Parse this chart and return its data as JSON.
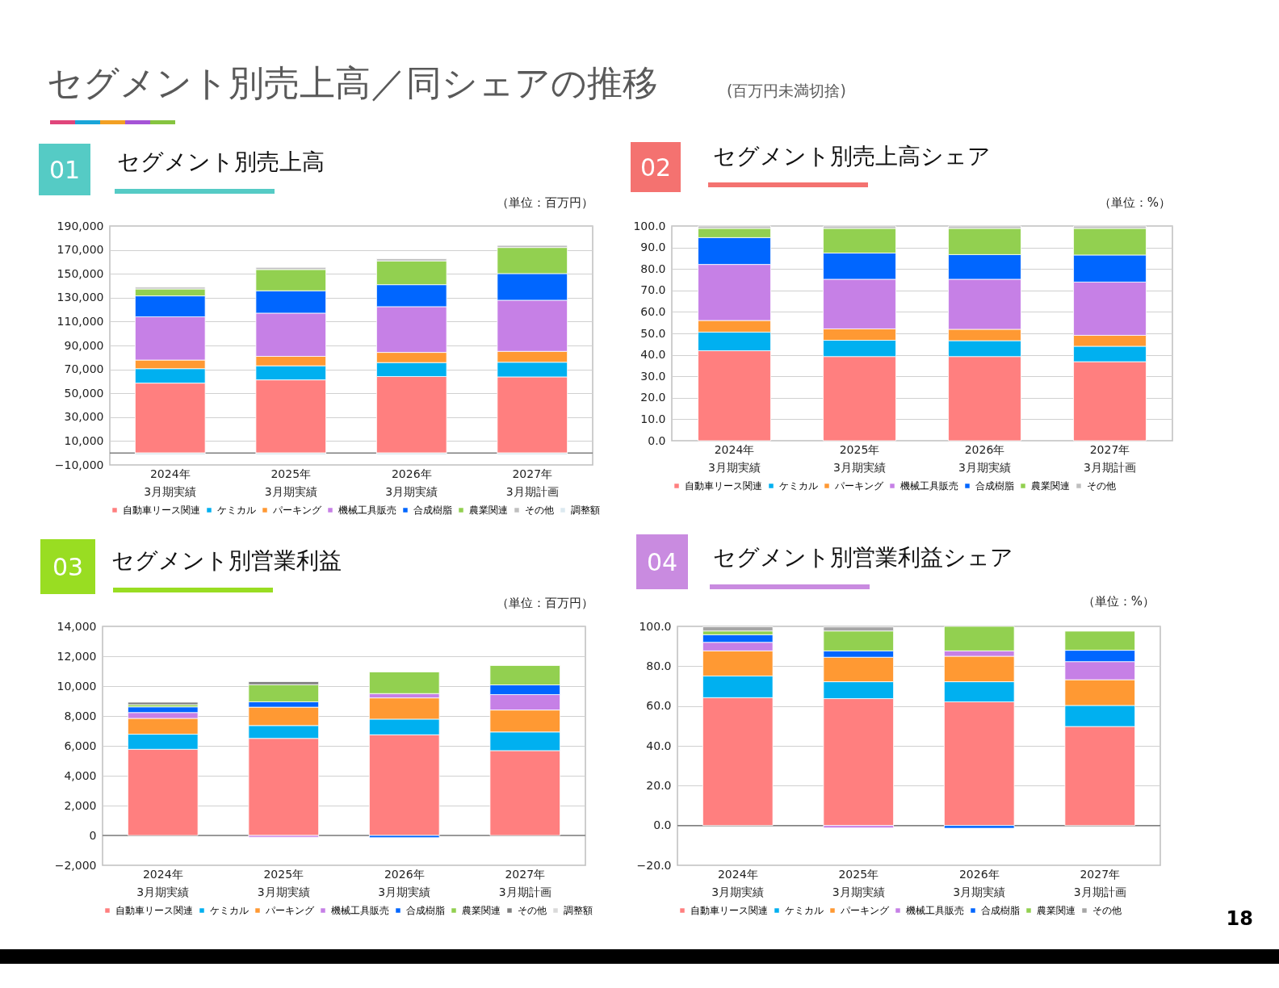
{
  "chart_data": [
    {
      "type": "bar",
      "title": "セグメント別売上高",
      "ylabel": "（単位：百万円）",
      "annotations": [
        "01",
        "セグメント別売上高／同シェアの推移",
        "(百万円未満切捨)"
      ],
      "categories": [
        "2024年\n3月期実績",
        "2025年\n3月期実績",
        "2026年\n3月期実績",
        "2027年\n3月期計画"
      ],
      "stacked": true,
      "series": [
        {
          "name": "自動車リース関連",
          "color": "#ff7f7f",
          "values": [
            58500,
            61200,
            64000,
            63700
          ]
        },
        {
          "name": "ケミカル",
          "color": "#00b0f0",
          "values": [
            12100,
            11800,
            11700,
            12300
          ]
        },
        {
          "name": "パーキング",
          "color": "#ff9933",
          "values": [
            7200,
            7900,
            8500,
            9100
          ]
        },
        {
          "name": "機械工具販売",
          "color": "#c680e6",
          "values": [
            36200,
            36200,
            38300,
            42800
          ]
        },
        {
          "name": "合成樹脂",
          "color": "#0066ff",
          "values": [
            17500,
            18700,
            18400,
            22300
          ]
        },
        {
          "name": "農業関連",
          "color": "#92d050",
          "values": [
            5800,
            17800,
            19900,
            21800
          ]
        },
        {
          "name": "その他",
          "color": "#bfbfbf",
          "values": [
            1500,
            1800,
            1800,
            1800
          ]
        },
        {
          "name": "調整額",
          "color": "#dce9f0",
          "values": [
            -1500,
            -1500,
            -1500,
            -1500
          ]
        }
      ],
      "ylim": [
        -10000,
        190000
      ],
      "yticks": [
        {
          "value": -10000,
          "label": "−10,000"
        },
        {
          "value": 10000,
          "label": "10,000"
        },
        {
          "value": 30000,
          "label": "30,000"
        },
        {
          "value": 50000,
          "label": "50,000"
        },
        {
          "value": 70000,
          "label": "70,000"
        },
        {
          "value": 90000,
          "label": "90,000"
        },
        {
          "value": 110000,
          "label": "110,000"
        },
        {
          "value": 130000,
          "label": "130,000"
        },
        {
          "value": 150000,
          "label": "150,000"
        },
        {
          "value": 170000,
          "label": "170,000"
        },
        {
          "value": 190000,
          "label": "190,000"
        }
      ],
      "ref_lines": [
        {
          "axis": "y",
          "value": 0,
          "color": "#808080"
        }
      ],
      "grid": "y",
      "legend": "bottom"
    },
    {
      "type": "bar",
      "title": "セグメント別売上高シェア",
      "ylabel": "（単位：%）",
      "annotations": [
        "02"
      ],
      "categories": [
        "2024年\n3月期実績",
        "2025年\n3月期実績",
        "2026年\n3月期実績",
        "2027年\n3月期計画"
      ],
      "stacked": true,
      "series": [
        {
          "name": "自動車リース関連",
          "color": "#ff7f7f",
          "values": [
            41.9,
            39.2,
            39.2,
            36.8
          ]
        },
        {
          "name": "ケミカル",
          "color": "#00b0f0",
          "values": [
            8.7,
            7.6,
            7.4,
            7.2
          ]
        },
        {
          "name": "パーキング",
          "color": "#ff9933",
          "values": [
            5.4,
            5.3,
            5.3,
            5.1
          ]
        },
        {
          "name": "機械工具販売",
          "color": "#c680e6",
          "values": [
            26.1,
            23.1,
            23.3,
            24.8
          ]
        },
        {
          "name": "合成樹脂",
          "color": "#0066ff",
          "values": [
            12.5,
            12.2,
            11.5,
            12.6
          ]
        },
        {
          "name": "農業関連",
          "color": "#92d050",
          "values": [
            4.3,
            11.5,
            12.2,
            12.4
          ]
        },
        {
          "name": "その他",
          "color": "#bfbfbf",
          "values": [
            1.1,
            1.1,
            1.1,
            1.1
          ]
        }
      ],
      "ylim": [
        0,
        100
      ],
      "yticks": [
        {
          "value": 0,
          "label": "0.0"
        },
        {
          "value": 10,
          "label": "10.0"
        },
        {
          "value": 20,
          "label": "20.0"
        },
        {
          "value": 30,
          "label": "30.0"
        },
        {
          "value": 40,
          "label": "40.0"
        },
        {
          "value": 50,
          "label": "50.0"
        },
        {
          "value": 60,
          "label": "60.0"
        },
        {
          "value": 70,
          "label": "70.0"
        },
        {
          "value": 80,
          "label": "80.0"
        },
        {
          "value": 90,
          "label": "90.0"
        },
        {
          "value": 100,
          "label": "100.0"
        }
      ],
      "grid": "y",
      "legend": "bottom"
    },
    {
      "type": "bar",
      "title": "セグメント別営業利益",
      "ylabel": "（単位：百万円）",
      "annotations": [
        "03"
      ],
      "categories": [
        "2024年\n3月期実績",
        "2025年\n3月期実績",
        "2026年\n3月期実績",
        "2027年\n3月期計画"
      ],
      "stacked": true,
      "series": [
        {
          "name": "自動車リース関連",
          "color": "#ff7f7f",
          "values": [
            5770,
            6500,
            6740,
            5680
          ]
        },
        {
          "name": "ケミカル",
          "color": "#00b0f0",
          "values": [
            1010,
            860,
            1050,
            1250
          ]
        },
        {
          "name": "パーキング",
          "color": "#ff9933",
          "values": [
            1060,
            1230,
            1420,
            1470
          ]
        },
        {
          "name": "機械工具販売",
          "color": "#c680e6",
          "values": [
            390,
            -120,
            290,
            1030
          ]
        },
        {
          "name": "合成樹脂",
          "color": "#0066ff",
          "values": [
            380,
            360,
            -150,
            650
          ]
        },
        {
          "name": "農業関連",
          "color": "#92d050",
          "values": [
            150,
            1150,
            1450,
            1300
          ]
        },
        {
          "name": "その他",
          "color": "#7f7f7f",
          "values": [
            160,
            200,
            null,
            null
          ]
        },
        {
          "name": "調整額",
          "color": "#d9d9d9",
          "values": [
            null,
            null,
            null,
            null
          ]
        }
      ],
      "ylim": [
        -2000,
        14000
      ],
      "yticks": [
        {
          "value": -2000,
          "label": "−2,000"
        },
        0,
        {
          "value": 2000,
          "label": "2,000"
        },
        {
          "value": 4000,
          "label": "4,000"
        },
        {
          "value": 6000,
          "label": "6,000"
        },
        {
          "value": 8000,
          "label": "8,000"
        },
        {
          "value": 10000,
          "label": "10,000"
        },
        {
          "value": 12000,
          "label": "12,000"
        },
        {
          "value": 14000,
          "label": "14,000"
        }
      ],
      "ref_lines": [
        {
          "axis": "y",
          "value": 0,
          "color": "#808080"
        }
      ],
      "grid": "y",
      "legend": "bottom"
    },
    {
      "type": "bar",
      "title": "セグメント別営業利益シェア",
      "ylabel": "（単位：%）",
      "annotations": [
        "04",
        "18"
      ],
      "categories": [
        "2024年\n3月期実績",
        "2025年\n3月期実績",
        "2026年\n3月期実績",
        "2027年\n3月期計画"
      ],
      "stacked": true,
      "series": [
        {
          "name": "自動車リース関連",
          "color": "#ff7f7f",
          "values": [
            64.2,
            63.7,
            62.1,
            49.7
          ]
        },
        {
          "name": "ケミカル",
          "color": "#00b0f0",
          "values": [
            10.9,
            8.5,
            10.1,
            10.6
          ]
        },
        {
          "name": "パーキング",
          "color": "#ff9933",
          "values": [
            12.6,
            12.3,
            12.8,
            12.9
          ]
        },
        {
          "name": "機械工具販売",
          "color": "#c680e6",
          "values": [
            4.3,
            -1.2,
            2.7,
            9.1
          ]
        },
        {
          "name": "合成樹脂",
          "color": "#0066ff",
          "values": [
            3.8,
            3.2,
            -1.4,
            5.7
          ]
        },
        {
          "name": "農業関連",
          "color": "#92d050",
          "values": [
            1.9,
            10.0,
            12.3,
            9.6
          ]
        },
        {
          "name": "その他",
          "color": "#a6a6a6",
          "values": [
            2.1,
            2.0,
            null,
            null
          ]
        }
      ],
      "ylim": [
        -20,
        100
      ],
      "yticks": [
        {
          "value": -20,
          "label": "−20.0"
        },
        {
          "value": 0,
          "label": "0.0"
        },
        {
          "value": 20,
          "label": "20.0"
        },
        {
          "value": 40,
          "label": "40.0"
        },
        {
          "value": 60,
          "label": "60.0"
        },
        {
          "value": 80,
          "label": "80.0"
        },
        {
          "value": 100,
          "label": "100.0"
        }
      ],
      "ref_lines": [
        {
          "axis": "y",
          "value": 0,
          "color": "#808080"
        }
      ],
      "grid": "y",
      "legend": "bottom"
    }
  ]
}
